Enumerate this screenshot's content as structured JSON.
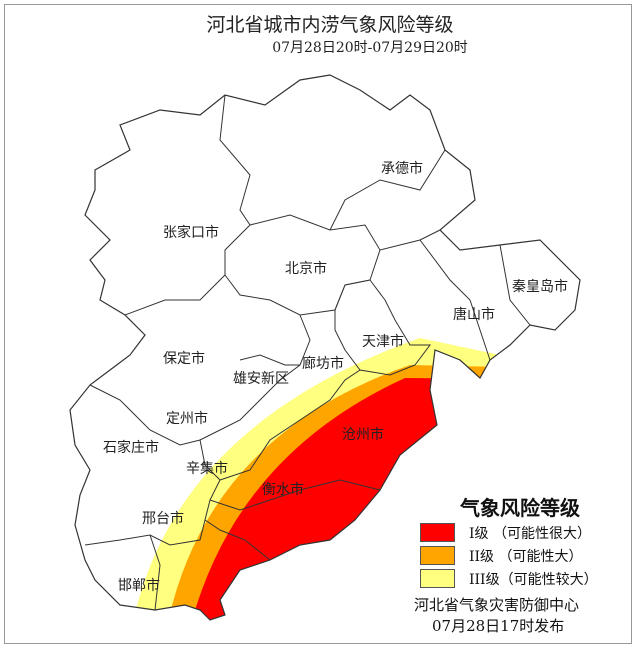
{
  "title": "河北省城市内涝气象风险等级",
  "subtitle": "07月28日20时-07月29日20时",
  "colors": {
    "level1": "#ff0000",
    "level2": "#ffa500",
    "level3": "#ffff80",
    "border": "#333333"
  },
  "cities": {
    "chengde": "承德市",
    "zhangjiakou": "张家口市",
    "beijing": "北京市",
    "qinhuangdao": "秦皇岛市",
    "tangshan": "唐山市",
    "tianjin": "天津市",
    "baoding": "保定市",
    "langfang": "廊坊市",
    "xiongan": "雄安新区",
    "dingzhou": "定州市",
    "cangzhou": "沧州市",
    "shijiazhuang": "石家庄市",
    "xinji": "辛集市",
    "hengshui": "衡水市",
    "xingtai": "邢台市",
    "handan": "邯郸市"
  },
  "legend": {
    "title": "气象风险等级",
    "items": [
      {
        "label": "I级 （可能性很大）",
        "color": "#ff0000"
      },
      {
        "label": "II级 （可能性大）",
        "color": "#ffa500"
      },
      {
        "label": "III级（可能性较大）",
        "color": "#ffff80"
      }
    ]
  },
  "issuer": "河北省气象灾害防御中心",
  "issue_time": "07月28日17时发布"
}
